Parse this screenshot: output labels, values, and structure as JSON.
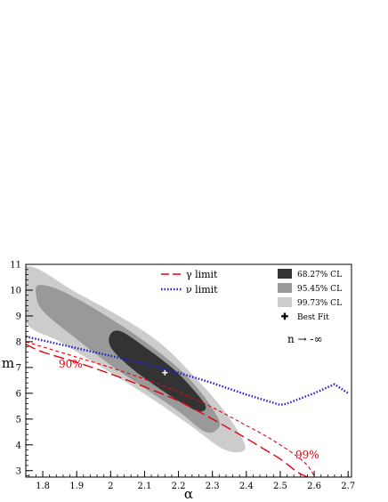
{
  "chart_data": {
    "type": "contour",
    "xlabel": "α",
    "ylabel": "m",
    "xlim": [
      1.75,
      2.71
    ],
    "ylim": [
      2.75,
      11.0
    ],
    "x_ticks": [
      "1.8",
      "1.9",
      "2",
      "2.1",
      "2.2",
      "2.3",
      "2.4",
      "2.5",
      "2.6",
      "2.7"
    ],
    "y_ticks": [
      "3",
      "4",
      "5",
      "6",
      "7",
      "8",
      "9",
      "10",
      "11"
    ],
    "legend_left": {
      "gamma": "γ limit",
      "nu": "ν limit"
    },
    "legend_right": {
      "cl68": "68.27% CL",
      "cl95": "95.45% CL",
      "cl99": "99.73% CL",
      "best": "Best Fit"
    },
    "annotation_limit": "n → -∞",
    "label_90": "90%",
    "label_99": "99%",
    "best_fit": {
      "x": 2.16,
      "y": 6.8
    },
    "contours": [
      {
        "level": "99.73% CL",
        "color": "#cccccc",
        "points": [
          [
            1.75,
            10.9
          ],
          [
            1.9,
            9.9
          ],
          [
            2.05,
            8.8
          ],
          [
            2.15,
            7.9
          ],
          [
            2.25,
            6.6
          ],
          [
            2.33,
            5.4
          ],
          [
            2.39,
            4.2
          ],
          [
            2.39,
            3.75
          ],
          [
            2.33,
            3.85
          ],
          [
            2.23,
            4.8
          ],
          [
            2.12,
            5.8
          ],
          [
            2.0,
            6.8
          ],
          [
            1.85,
            8.0
          ],
          [
            1.75,
            8.8
          ]
        ]
      },
      {
        "level": "95.45% CL",
        "color": "#999999",
        "points": [
          [
            1.79,
            10.2
          ],
          [
            1.85,
            10.0
          ],
          [
            1.95,
            9.3
          ],
          [
            2.08,
            8.2
          ],
          [
            2.18,
            7.2
          ],
          [
            2.25,
            6.3
          ],
          [
            2.31,
            5.2
          ],
          [
            2.32,
            4.7
          ],
          [
            2.28,
            4.5
          ],
          [
            2.2,
            5.3
          ],
          [
            2.1,
            6.2
          ],
          [
            2.0,
            7.1
          ],
          [
            1.9,
            8.1
          ],
          [
            1.8,
            9.2
          ],
          [
            1.78,
            9.9
          ]
        ]
      },
      {
        "level": "68.27% CL",
        "color": "#333333",
        "points": [
          [
            2.0,
            8.3
          ],
          [
            2.03,
            8.4
          ],
          [
            2.1,
            7.8
          ],
          [
            2.18,
            7.0
          ],
          [
            2.24,
            6.2
          ],
          [
            2.28,
            5.5
          ],
          [
            2.26,
            5.3
          ],
          [
            2.2,
            5.7
          ],
          [
            2.12,
            6.4
          ],
          [
            2.05,
            7.1
          ],
          [
            2.0,
            7.8
          ]
        ]
      }
    ],
    "series": [
      {
        "name": "γ limit",
        "color": "#e8000b",
        "style": "long-dash",
        "level_label": "90%",
        "x": [
          1.75,
          1.8,
          1.9,
          2.0,
          2.1,
          2.2,
          2.3,
          2.4,
          2.45,
          2.5,
          2.55,
          2.58
        ],
        "y": [
          7.9,
          7.6,
          7.2,
          6.75,
          6.25,
          5.7,
          5.0,
          4.25,
          3.85,
          3.45,
          2.95,
          2.75
        ]
      },
      {
        "name": "",
        "color": "#e8000b",
        "style": "short-dash",
        "level_label": "99%",
        "x": [
          1.75,
          1.8,
          1.9,
          2.0,
          2.1,
          2.2,
          2.3,
          2.4,
          2.45,
          2.5,
          2.55,
          2.58,
          2.6
        ],
        "y": [
          8.0,
          7.8,
          7.4,
          7.0,
          6.55,
          6.05,
          5.45,
          4.75,
          4.4,
          4.0,
          3.55,
          3.2,
          2.8
        ]
      },
      {
        "name": "ν limit",
        "color": "#1f1fcc",
        "style": "dotted",
        "x": [
          1.75,
          1.8,
          1.9,
          2.0,
          2.1,
          2.2,
          2.3,
          2.4,
          2.5,
          2.52,
          2.6,
          2.66,
          2.7
        ],
        "y": [
          8.2,
          8.05,
          7.75,
          7.45,
          7.15,
          6.8,
          6.4,
          5.95,
          5.55,
          5.6,
          6.0,
          6.35,
          6.0
        ]
      }
    ]
  }
}
